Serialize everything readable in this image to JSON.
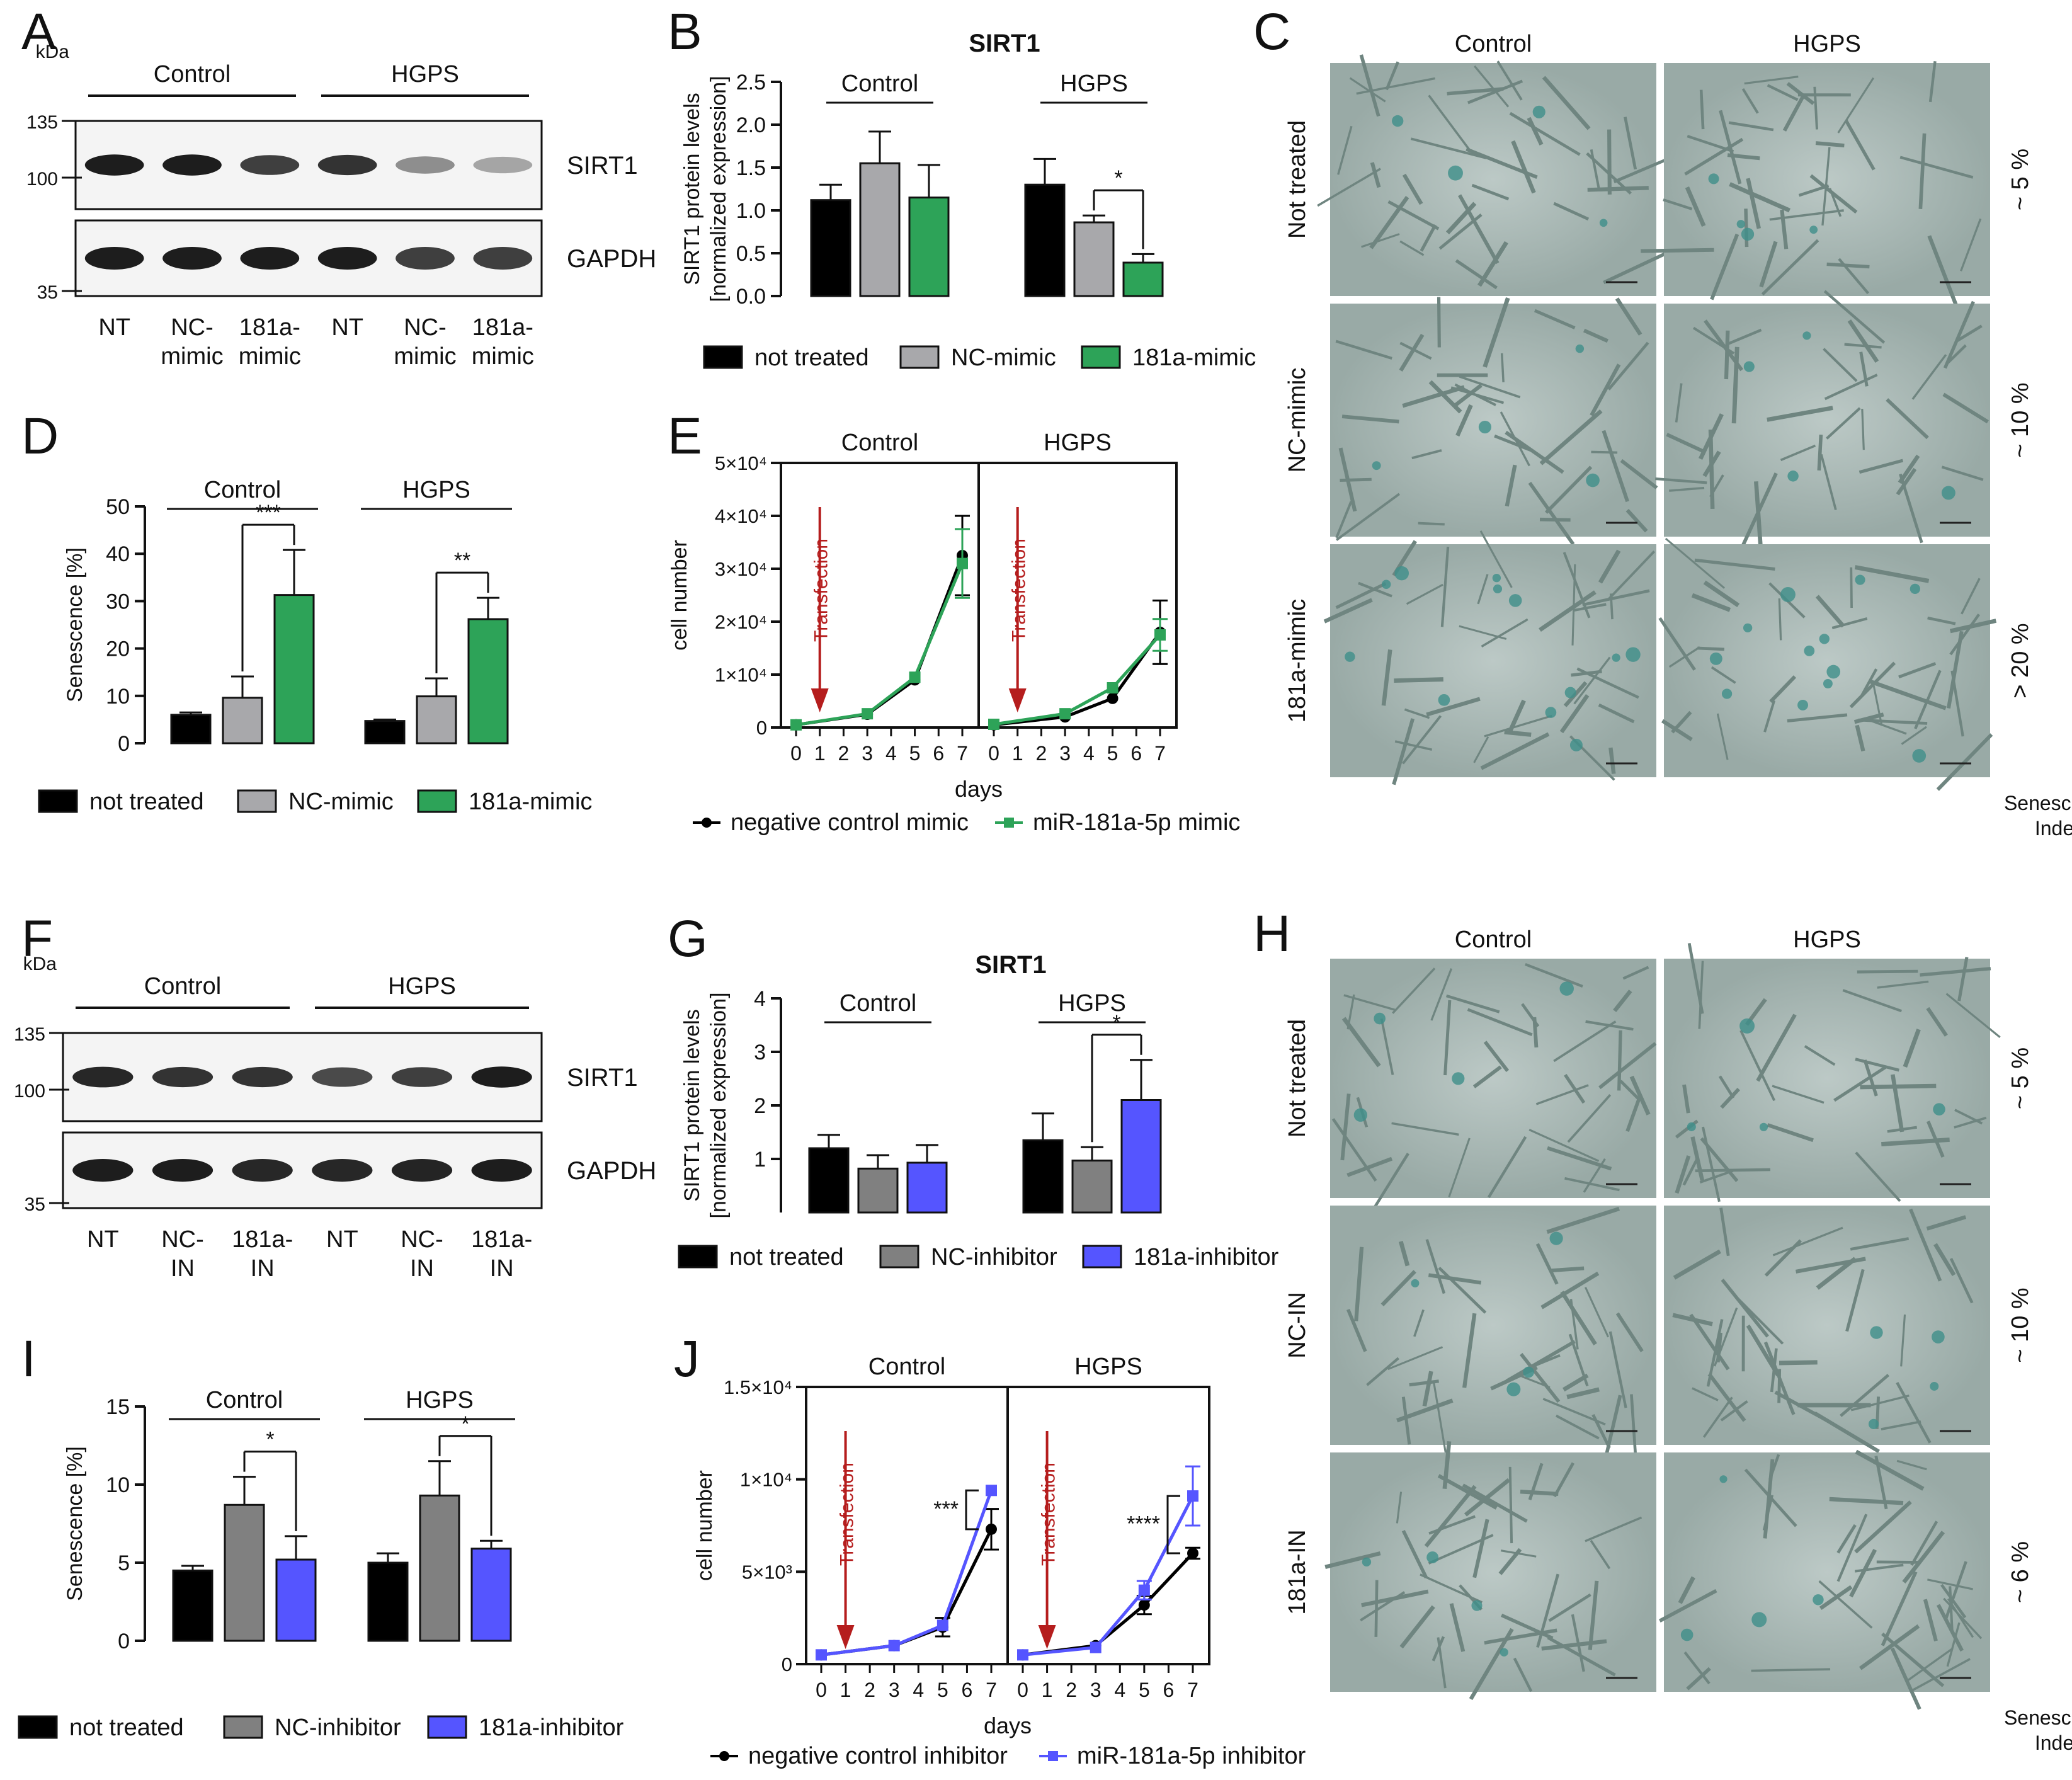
{
  "colors": {
    "black": "#000000",
    "grey": "#a8a8ab",
    "grey_dark": "#808080",
    "green": "#2da358",
    "blue": "#5555ff",
    "red": "#b51d1d",
    "micro_bg": "#a7b7b4"
  },
  "panels": {
    "A": {
      "label": "A",
      "unit": "kDa",
      "groups": [
        "Control",
        "HGPS"
      ],
      "markers": [
        "135",
        "100",
        "35"
      ],
      "bands": [
        "SIRT1",
        "GAPDH"
      ],
      "lanes": [
        [
          "NT"
        ],
        [
          "NC-",
          "mimic"
        ],
        [
          "181a-",
          "mimic"
        ],
        [
          "NT"
        ],
        [
          "NC-",
          "mimic"
        ],
        [
          "181a-",
          "mimic"
        ]
      ]
    },
    "F": {
      "label": "F",
      "unit": "kDa",
      "groups": [
        "Control",
        "HGPS"
      ],
      "markers": [
        "135",
        "100",
        "35"
      ],
      "bands": [
        "SIRT1",
        "GAPDH"
      ],
      "lanes": [
        [
          "NT"
        ],
        [
          "NC-",
          "IN"
        ],
        [
          "181a-",
          "IN"
        ],
        [
          "NT"
        ],
        [
          "NC-",
          "IN"
        ],
        [
          "181a-",
          "IN"
        ]
      ]
    },
    "C": {
      "label": "C",
      "cols": [
        "Control",
        "HGPS"
      ],
      "rows": [
        "Not treated",
        "NC-mimic",
        "181a-mimic"
      ],
      "index": [
        "~ 5 %",
        "~ 10 %",
        "> 20 %"
      ],
      "index_title": [
        "Senescence",
        "Index"
      ]
    },
    "H": {
      "label": "H",
      "cols": [
        "Control",
        "HGPS"
      ],
      "rows": [
        "Not treated",
        "NC-IN",
        "181a-IN"
      ],
      "index": [
        "~ 5 %",
        "~ 10 %",
        "~ 6 %"
      ],
      "index_title": [
        "Senescence",
        "Index"
      ]
    }
  },
  "chart_data": [
    {
      "panel": "B",
      "type": "bar",
      "title": "SIRT1",
      "ylabel": [
        "SIRT1 protein levels",
        "[normalized expression]"
      ],
      "ylim": [
        0,
        2.5
      ],
      "yticks": [
        "0.0",
        "0.5",
        "1.0",
        "1.5",
        "2.0",
        "2.5"
      ],
      "groups": [
        "Control",
        "HGPS"
      ],
      "series": [
        {
          "name": "not treated",
          "values": [
            1.12,
            1.3
          ],
          "errors": [
            0.18,
            0.3
          ]
        },
        {
          "name": "NC-mimic",
          "values": [
            1.55,
            0.86
          ],
          "errors": [
            0.37,
            0.08
          ]
        },
        {
          "name": "181a-mimic",
          "values": [
            1.15,
            0.39
          ],
          "errors": [
            0.38,
            0.1
          ]
        }
      ],
      "significance": [
        {
          "group": "HGPS",
          "from": "NC-mimic",
          "to": "181a-mimic",
          "label": "*"
        }
      ]
    },
    {
      "panel": "D",
      "type": "bar",
      "title": "",
      "ylabel": [
        "Senescence [%]"
      ],
      "ylim": [
        0,
        50
      ],
      "yticks": [
        "0",
        "10",
        "20",
        "30",
        "40",
        "50"
      ],
      "groups": [
        "Control",
        "HGPS"
      ],
      "series": [
        {
          "name": "not treated",
          "values": [
            6,
            4.7
          ],
          "errors": [
            0.5,
            0.3
          ]
        },
        {
          "name": "NC-mimic",
          "values": [
            9.6,
            9.9
          ],
          "errors": [
            4.5,
            3.8
          ]
        },
        {
          "name": "181a-mimic",
          "values": [
            31.3,
            26.2
          ],
          "errors": [
            9.5,
            4.5
          ]
        }
      ],
      "significance": [
        {
          "group": "Control",
          "from": "NC-mimic",
          "to": "181a-mimic",
          "label": "***"
        },
        {
          "group": "HGPS",
          "from": "NC-mimic",
          "to": "181a-mimic",
          "label": "**"
        }
      ]
    },
    {
      "panel": "G",
      "type": "bar",
      "title": "SIRT1",
      "ylabel": [
        "SIRT1 protein levels",
        "[normalized expression]"
      ],
      "ylim": [
        0,
        4
      ],
      "yticks": [
        "1",
        "2",
        "3",
        "4"
      ],
      "groups": [
        "Control",
        "HGPS"
      ],
      "series": [
        {
          "name": "not treated",
          "values": [
            1.2,
            1.35
          ],
          "errors": [
            0.25,
            0.5
          ]
        },
        {
          "name": "NC-inhibitor",
          "values": [
            0.82,
            0.97
          ],
          "errors": [
            0.25,
            0.25
          ]
        },
        {
          "name": "181a-inhibitor",
          "values": [
            0.93,
            2.1
          ],
          "errors": [
            0.33,
            0.75
          ]
        }
      ],
      "significance": [
        {
          "group": "HGPS",
          "from": "NC-inhibitor",
          "to": "181a-inhibitor",
          "label": "*"
        }
      ]
    },
    {
      "panel": "I",
      "type": "bar",
      "title": "",
      "ylabel": [
        "Senescence [%]"
      ],
      "ylim": [
        0,
        15
      ],
      "yticks": [
        "0",
        "5",
        "10",
        "15"
      ],
      "groups": [
        "Control",
        "HGPS"
      ],
      "series": [
        {
          "name": "not treated",
          "values": [
            4.5,
            5
          ],
          "errors": [
            0.3,
            0.6
          ]
        },
        {
          "name": "NC-inhibitor",
          "values": [
            8.7,
            9.3
          ],
          "errors": [
            1.8,
            2.2
          ]
        },
        {
          "name": "181a-inhibitor",
          "values": [
            5.2,
            5.9
          ],
          "errors": [
            1.5,
            0.5
          ]
        }
      ],
      "significance": [
        {
          "group": "Control",
          "from": "NC-inhibitor",
          "to": "181a-inhibitor",
          "label": "*"
        },
        {
          "group": "HGPS",
          "from": "NC-inhibitor",
          "to": "181a-inhibitor",
          "label": "*"
        }
      ]
    },
    {
      "panel": "E",
      "type": "line",
      "xlabel": "days",
      "ylabel": "cell number",
      "ylim": [
        0,
        50000
      ],
      "yticks": [
        "0",
        "1×10⁴",
        "2×10⁴",
        "3×10⁴",
        "4×10⁴",
        "5×10⁴"
      ],
      "x": [
        0,
        1,
        2,
        3,
        4,
        5,
        6,
        7
      ],
      "facets": [
        "Control",
        "HGPS"
      ],
      "annotation": "Transfection",
      "annotation_x": 1,
      "series": [
        {
          "name": "negative control mimic",
          "facet": "Control",
          "x": [
            0,
            3,
            5,
            7
          ],
          "y": [
            500,
            2500,
            9000,
            32500
          ],
          "err": [
            0,
            0,
            0,
            7500
          ]
        },
        {
          "name": "miR-181a-5p mimic",
          "facet": "Control",
          "x": [
            0,
            3,
            5,
            7
          ],
          "y": [
            500,
            2600,
            9500,
            31000
          ],
          "err": [
            0,
            0,
            0,
            6500
          ]
        },
        {
          "name": "negative control mimic",
          "facet": "HGPS",
          "x": [
            0,
            3,
            5,
            7
          ],
          "y": [
            500,
            2000,
            5500,
            18000
          ],
          "err": [
            0,
            0,
            0,
            6000
          ]
        },
        {
          "name": "miR-181a-5p mimic",
          "facet": "HGPS",
          "x": [
            0,
            3,
            5,
            7
          ],
          "y": [
            600,
            2600,
            7500,
            17500
          ],
          "err": [
            0,
            0,
            0,
            3000
          ]
        }
      ]
    },
    {
      "panel": "J",
      "type": "line",
      "xlabel": "days",
      "ylabel": "cell number",
      "ylim": [
        0,
        15000
      ],
      "yticks": [
        "0",
        "5×10³",
        "1×10⁴",
        "1.5×10⁴"
      ],
      "x": [
        0,
        1,
        2,
        3,
        4,
        5,
        6,
        7
      ],
      "facets": [
        "Control",
        "HGPS"
      ],
      "annotation": "Transfection",
      "annotation_x": 1,
      "series": [
        {
          "name": "negative control inhibitor",
          "facet": "Control",
          "x": [
            0,
            3,
            5,
            7
          ],
          "y": [
            500,
            1000,
            2000,
            7300
          ],
          "err": [
            0,
            0,
            500,
            1100
          ]
        },
        {
          "name": "miR-181a-5p inhibitor",
          "facet": "Control",
          "x": [
            0,
            3,
            5,
            7
          ],
          "y": [
            500,
            1000,
            2100,
            9400
          ],
          "err": [
            0,
            0,
            0,
            0
          ]
        },
        {
          "name": "negative control inhibitor",
          "facet": "HGPS",
          "x": [
            0,
            3,
            5,
            7
          ],
          "y": [
            500,
            1000,
            3200,
            6000
          ],
          "err": [
            0,
            0,
            500,
            300
          ]
        },
        {
          "name": "miR-181a-5p inhibitor",
          "facet": "HGPS",
          "x": [
            0,
            3,
            5,
            7
          ],
          "y": [
            500,
            900,
            4000,
            9100
          ],
          "err": [
            0,
            0,
            500,
            1600
          ]
        }
      ],
      "significance": [
        {
          "facet": "Control",
          "label": "***"
        },
        {
          "facet": "HGPS",
          "label": "****"
        }
      ]
    }
  ]
}
